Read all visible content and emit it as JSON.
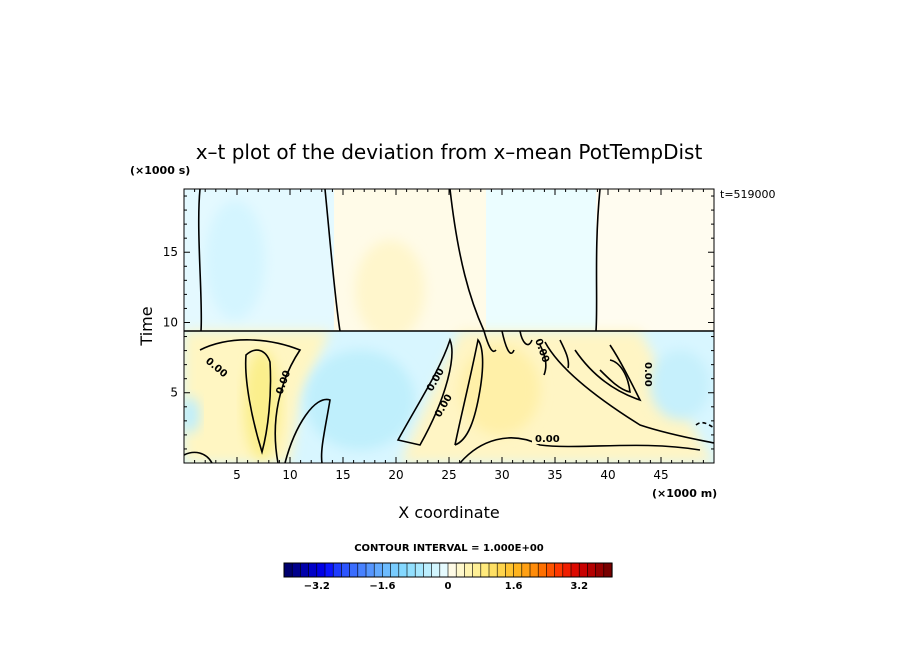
{
  "chart_data": {
    "type": "heatmap",
    "title": "x–t plot of the deviation from x–mean PotTempDist",
    "xlabel": "X coordinate",
    "ylabel": "Time",
    "x_unit": "(×1000 m)",
    "y_unit": "(×1000 s)",
    "time_stamp": "t=519000",
    "xlim": [
      0,
      50
    ],
    "ylim": [
      0,
      19.5
    ],
    "x_ticks": [
      "5",
      "10",
      "15",
      "20",
      "25",
      "30",
      "35",
      "40",
      "45"
    ],
    "y_ticks": [
      "5",
      "10",
      "15"
    ],
    "contour_label": "0.00",
    "contour_interval_text": "CONTOUR INTERVAL = 1.000E+00",
    "colorbar": {
      "min": -4,
      "max": 4,
      "step": 0.2,
      "tick_labels": [
        "−3.2",
        "−1.6",
        "0",
        "1.6",
        "3.2"
      ],
      "colors": [
        "#00006e",
        "#00008c",
        "#0000aa",
        "#0000c8",
        "#0000e6",
        "#0a14ff",
        "#1e3cff",
        "#2c55ff",
        "#3a6dff",
        "#4882ff",
        "#5596ff",
        "#62aaff",
        "#6dbcff",
        "#78ccff",
        "#84d8ff",
        "#92e0ff",
        "#a6e8ff",
        "#bcefff",
        "#d2f6ff",
        "#e6fbff",
        "#fffbe6",
        "#fff8cc",
        "#fff4b0",
        "#fff096",
        "#ffea7c",
        "#ffe064",
        "#ffd44c",
        "#ffc432",
        "#ffb41e",
        "#ffa014",
        "#ff8c0a",
        "#ff7000",
        "#ff5400",
        "#ff3800",
        "#f01e00",
        "#dc0a00",
        "#c80000",
        "#b40000",
        "#960000",
        "#780000"
      ]
    },
    "regions_approx": [
      {
        "x_range": [
          0,
          10
        ],
        "t_range": [
          0,
          9.5
        ],
        "deviation": "positive (up to ~1.6)"
      },
      {
        "x_range": [
          10,
          22
        ],
        "t_range": [
          0,
          9.5
        ],
        "deviation": "negative (~ -0.5 to -1)"
      },
      {
        "x_range": [
          22,
          42
        ],
        "t_range": [
          0,
          9.5
        ],
        "deviation": "positive (~0.5)"
      },
      {
        "x_range": [
          42,
          50
        ],
        "t_range": [
          0,
          9.5
        ],
        "deviation": "negative (~ -1)"
      },
      {
        "x_range": [
          0,
          14
        ],
        "t_range": [
          9.5,
          19.5
        ],
        "deviation": "negative (~ -0.3)"
      },
      {
        "x_range": [
          14,
          27
        ],
        "t_range": [
          9.5,
          19.5
        ],
        "deviation": "positive (~0.3)"
      },
      {
        "x_range": [
          27,
          39
        ],
        "t_range": [
          9.5,
          19.5
        ],
        "deviation": "negative (~ -0.2)"
      },
      {
        "x_range": [
          39,
          50
        ],
        "t_range": [
          9.5,
          19.5
        ],
        "deviation": "positive (~0.1)"
      }
    ]
  }
}
